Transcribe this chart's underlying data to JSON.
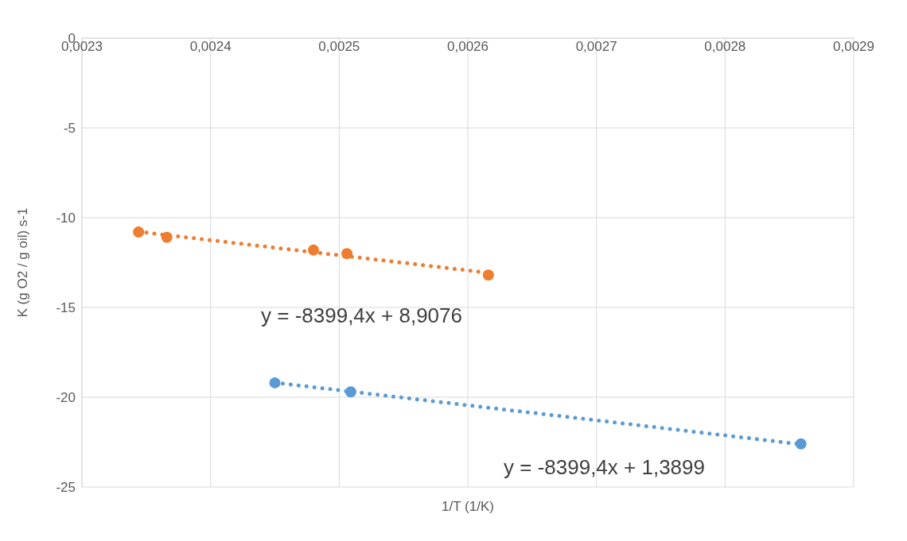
{
  "chart_data": {
    "type": "scatter",
    "xlabel": "1/T (1/K)",
    "ylabel": "K (g O2 / g oil) s-1",
    "xlim": [
      0.0023,
      0.0029
    ],
    "xticks": [
      {
        "value": 0.0023,
        "label": "0,0023"
      },
      {
        "value": 0.0024,
        "label": "0,0024"
      },
      {
        "value": 0.0025,
        "label": "0,0025"
      },
      {
        "value": 0.0026,
        "label": "0,0026"
      },
      {
        "value": 0.0027,
        "label": "0,0027"
      },
      {
        "value": 0.0028,
        "label": "0,0028"
      },
      {
        "value": 0.0029,
        "label": "0,0029"
      }
    ],
    "ylim": [
      -25,
      0
    ],
    "yticks": [
      -25,
      -20,
      -15,
      -10,
      -5,
      0
    ],
    "grid": true,
    "legend": false,
    "marker": "circle",
    "series": [
      {
        "type": "scatter",
        "color": "#ed7d31",
        "x": [
          0.002344,
          0.002366,
          0.00248,
          0.002506,
          0.002616
        ],
        "values": [
          -10.8,
          -11.1,
          -11.8,
          -12.0,
          -13.2
        ]
      },
      {
        "type": "scatter",
        "color": "#5b9bd5",
        "x": [
          0.00245,
          0.002509,
          0.002859
        ],
        "values": [
          -19.2,
          -19.7,
          -22.6
        ]
      },
      {
        "type": "line",
        "color": "#ed7d31",
        "line_style": "dotted",
        "marker": "none",
        "x": [
          0.002344,
          0.002616
        ],
        "values": [
          -10.78,
          -13.07
        ]
      },
      {
        "type": "line",
        "color": "#5b9bd5",
        "line_style": "dotted",
        "marker": "none",
        "x": [
          0.00245,
          0.002859
        ],
        "values": [
          -19.19,
          -22.62
        ]
      }
    ],
    "annotations": [
      "y = -8399,4x + 8,9076",
      "y = -8399,4x + 1,3899"
    ]
  }
}
